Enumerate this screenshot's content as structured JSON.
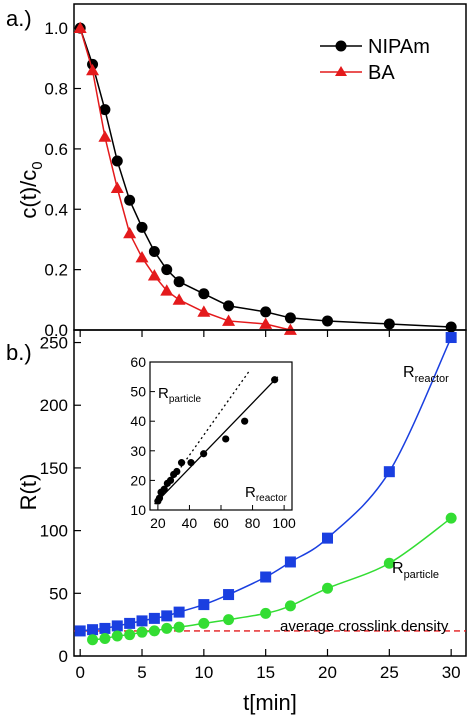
{
  "chart_data": [
    {
      "type": "line",
      "panel_label": "a.)",
      "ylabel": "c(t)/c",
      "ylabel_sub": "0",
      "xlim": [
        -0.5,
        31.2
      ],
      "ylim": [
        0.0,
        1.08
      ],
      "yticks": [
        "0.0",
        "0.2",
        "0.4",
        "0.6",
        "0.8",
        "1.0"
      ],
      "legend_position": "top-right",
      "series": [
        {
          "name": "NIPAm",
          "color": "#000000",
          "marker": "circle",
          "x": [
            0,
            1,
            2,
            3,
            4,
            5,
            6,
            7,
            8,
            10,
            12,
            15,
            17,
            20,
            25,
            30
          ],
          "y": [
            1.0,
            0.88,
            0.73,
            0.56,
            0.43,
            0.34,
            0.26,
            0.2,
            0.16,
            0.12,
            0.08,
            0.06,
            0.04,
            0.03,
            0.02,
            0.01
          ]
        },
        {
          "name": "BA",
          "color": "#e41a1c",
          "marker": "triangle",
          "x": [
            0,
            1,
            2,
            3,
            4,
            5,
            6,
            7,
            8,
            10,
            12,
            15,
            17
          ],
          "y": [
            1.0,
            0.86,
            0.64,
            0.47,
            0.32,
            0.24,
            0.18,
            0.13,
            0.1,
            0.06,
            0.03,
            0.02,
            0.0
          ]
        }
      ]
    },
    {
      "type": "line",
      "panel_label": "b.)",
      "xlabel": "t[min]",
      "ylabel": "R(t)",
      "xlim": [
        -0.5,
        31.2
      ],
      "ylim": [
        0,
        260
      ],
      "xticks": [
        "0",
        "5",
        "10",
        "15",
        "20",
        "25",
        "30"
      ],
      "yticks": [
        "0",
        "50",
        "100",
        "150",
        "200",
        "250"
      ],
      "series": [
        {
          "name": "R",
          "name_sub": "reactor",
          "color": "#1a3fe0",
          "marker": "square",
          "x": [
            0,
            1,
            2,
            3,
            4,
            5,
            6,
            7,
            8,
            10,
            12,
            15,
            17,
            20,
            25,
            30
          ],
          "y": [
            20,
            21,
            22,
            24,
            26,
            28,
            30,
            32,
            35,
            41,
            49,
            63,
            75,
            94,
            147,
            254
          ]
        },
        {
          "name": "R",
          "name_sub": "particle",
          "color": "#33dd33",
          "marker": "circle",
          "x": [
            1,
            2,
            3,
            4,
            5,
            6,
            7,
            8,
            10,
            12,
            15,
            17,
            20,
            25,
            30
          ],
          "y": [
            13,
            14,
            16,
            17,
            19,
            20,
            22,
            23,
            26,
            29,
            34,
            40,
            54,
            74,
            110
          ]
        }
      ],
      "reference_line": {
        "y": 20,
        "color": "#e41a1c",
        "style": "dashed",
        "label": "average crosslink density"
      },
      "inset": {
        "type": "scatter",
        "xlim": [
          15,
          105
        ],
        "ylim": [
          10,
          60
        ],
        "xticks": [
          "20",
          "40",
          "60",
          "80",
          "100"
        ],
        "yticks": [
          "10",
          "20",
          "30",
          "40",
          "50",
          "60"
        ],
        "label_top": "R",
        "label_top_sub": "particle",
        "label_bottom": "R",
        "label_bottom_sub": "reactor",
        "points": {
          "x": [
            20,
            21,
            22,
            24,
            26,
            28,
            30,
            32,
            35,
            41,
            49,
            63,
            75,
            94
          ],
          "y": [
            13,
            14,
            16,
            17,
            19,
            20,
            22,
            23,
            26,
            26,
            29,
            34,
            40,
            54
          ]
        },
        "fit_line": {
          "x": [
            18,
            96
          ],
          "y": [
            12,
            55
          ]
        },
        "dotted_line": {
          "x": [
            18,
            78
          ],
          "y": [
            12,
            57
          ]
        }
      }
    }
  ]
}
